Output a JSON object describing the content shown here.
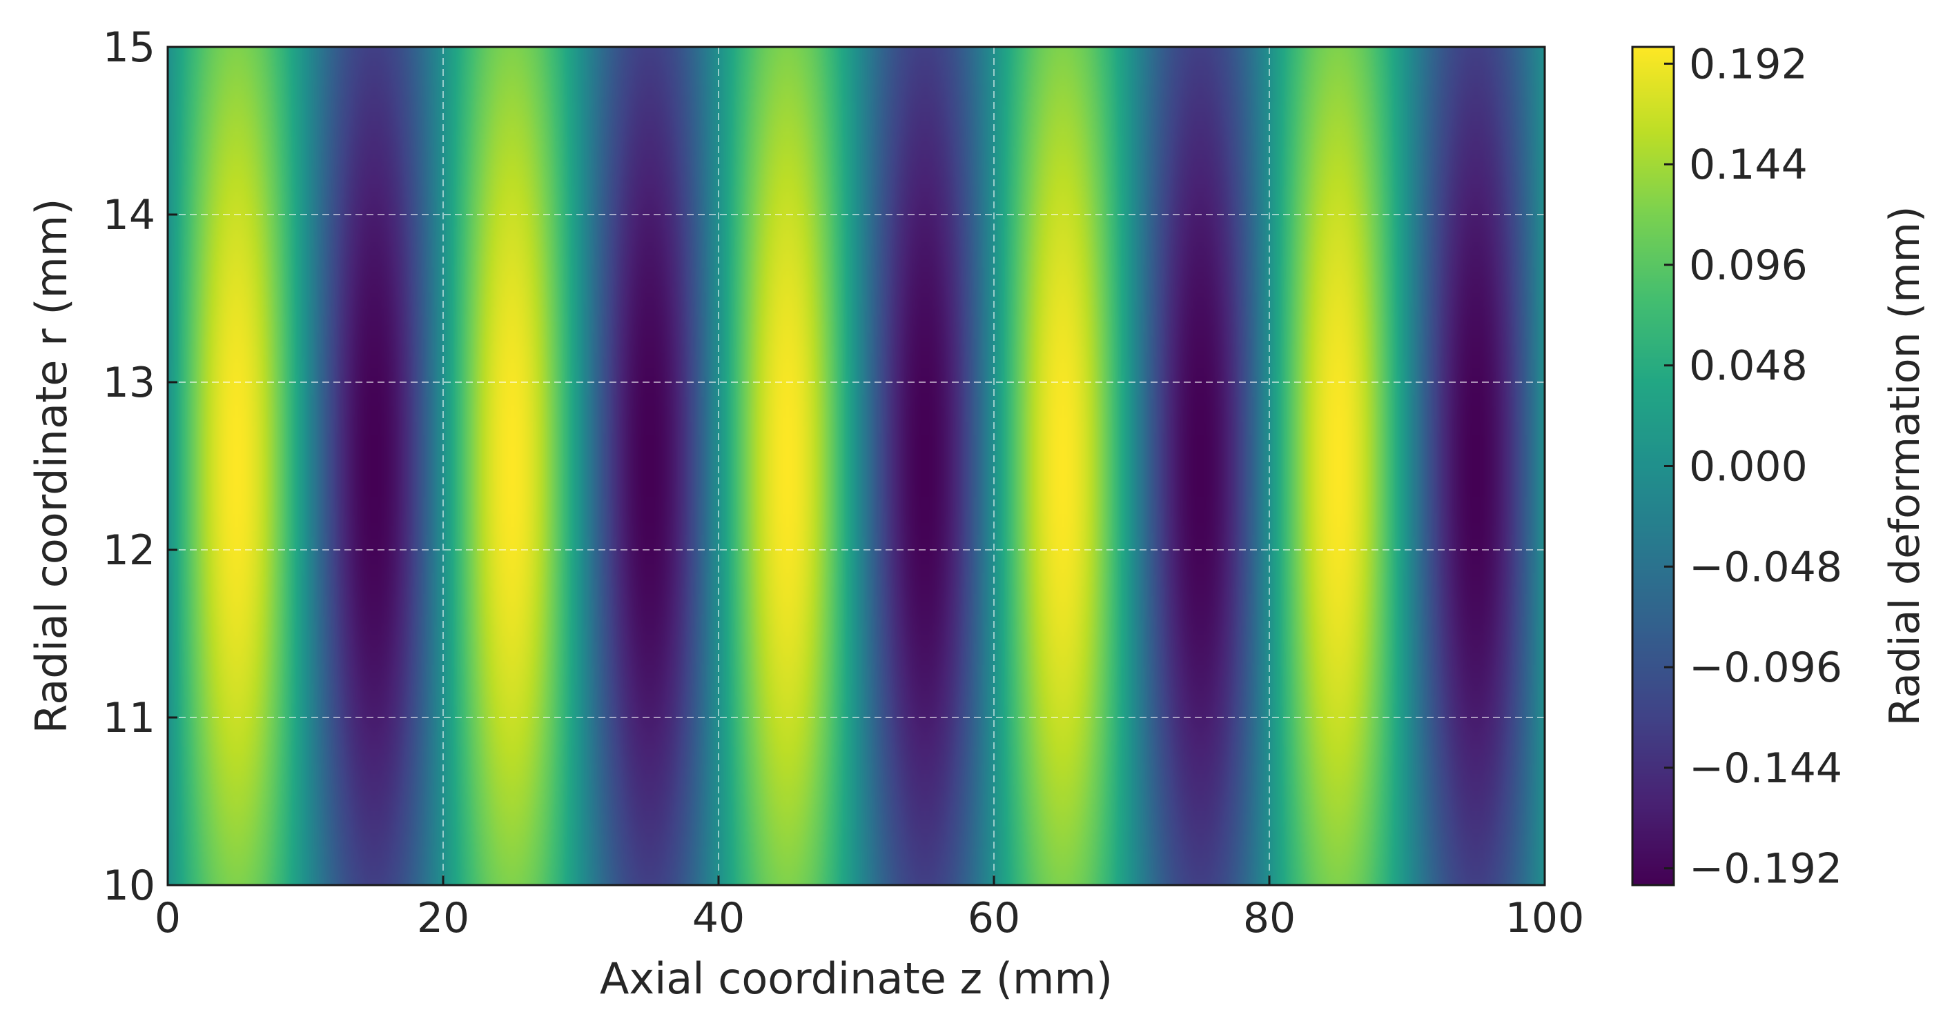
{
  "chart_data": {
    "type": "heatmap",
    "title": "",
    "xlabel": "Axial coordinate z (mm)",
    "ylabel": "Radial coordinate r (mm)",
    "colorbar_label": "Radial deformation (mm)",
    "colormap": "viridis",
    "xlim": [
      0,
      100
    ],
    "ylim": [
      10,
      15
    ],
    "x_ticks": [
      0,
      20,
      40,
      60,
      80,
      100
    ],
    "x_tick_labels": [
      "0",
      "20",
      "40",
      "60",
      "80",
      "100"
    ],
    "y_ticks": [
      10,
      11,
      12,
      13,
      14,
      15
    ],
    "y_tick_labels": [
      "10",
      "11",
      "12",
      "13",
      "14",
      "15"
    ],
    "colorbar_range": [
      -0.2,
      0.2
    ],
    "colorbar_ticks": [
      0.192,
      0.144,
      0.096,
      0.048,
      0.0,
      -0.048,
      -0.096,
      -0.144,
      -0.192
    ],
    "colorbar_tick_labels": [
      "0.192",
      "0.144",
      "0.096",
      "0.048",
      "0.000",
      "−0.048",
      "−0.096",
      "−0.144",
      "−0.192"
    ],
    "field": {
      "formula": "A * sin(2*pi*z/L) * exp(-((r - r0)/w)^2)",
      "amplitude": 0.2,
      "axial_wavelength": 20,
      "radial_center": 12.5,
      "radial_width": 3.6
    },
    "grid": true,
    "grid_style": "dashed"
  }
}
